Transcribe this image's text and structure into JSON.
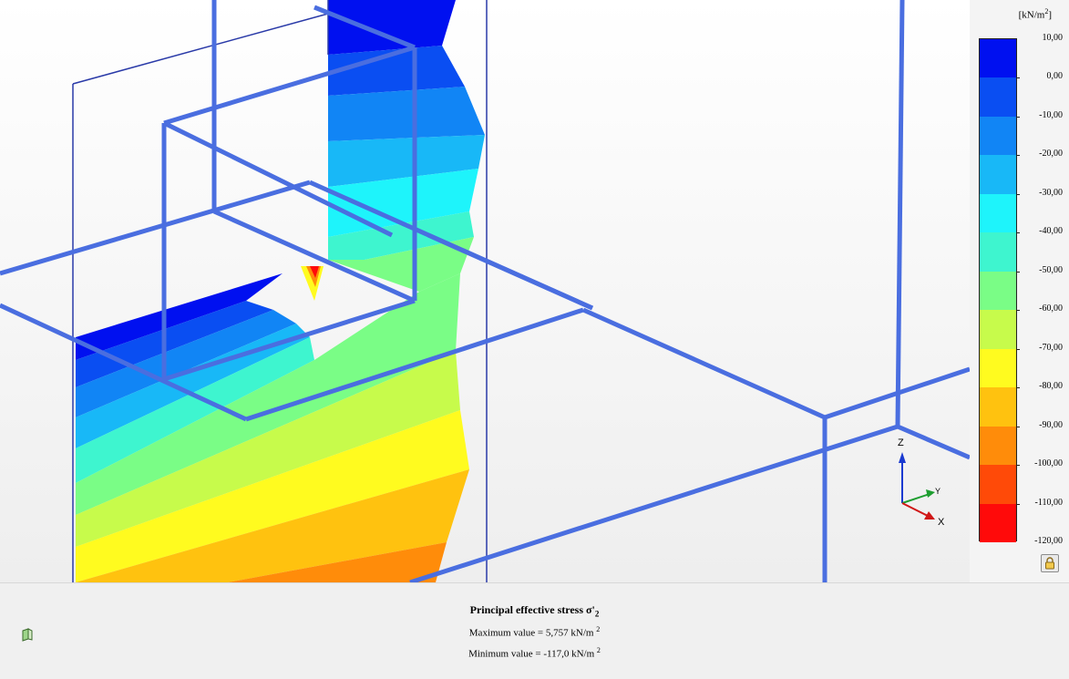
{
  "plot": {
    "title_main": "Principal effective stress σ'",
    "title_sub": "2",
    "max_prefix": "Maximum value = 5,757 kN/m",
    "max_exp": "2",
    "min_prefix": "Minimum value = -117,0 kN/m",
    "min_exp": "2"
  },
  "legend": {
    "unit_prefix": "[kN/m",
    "unit_exp": "2",
    "unit_suffix": "]",
    "labels": [
      "10,00",
      "0,00",
      "-10,00",
      "-20,00",
      "-30,00",
      "-40,00",
      "-50,00",
      "-60,00",
      "-70,00",
      "-80,00",
      "-90,00",
      "-100,00",
      "-110,00",
      "-120,00"
    ],
    "colors": [
      "#0010f0",
      "#0a4ef2",
      "#1185f5",
      "#18b8f7",
      "#1ef4fb",
      "#3ef5cf",
      "#7afd86",
      "#c7fb4b",
      "#fffb1f",
      "#ffc20f",
      "#ff8c0a",
      "#ff4a08",
      "#ff0a0a"
    ]
  },
  "axes": {
    "z_label": "Z",
    "y_label": "Y",
    "x_label": "X"
  },
  "icons": {
    "lock": "lock-icon",
    "view": "view-3d-icon"
  }
}
